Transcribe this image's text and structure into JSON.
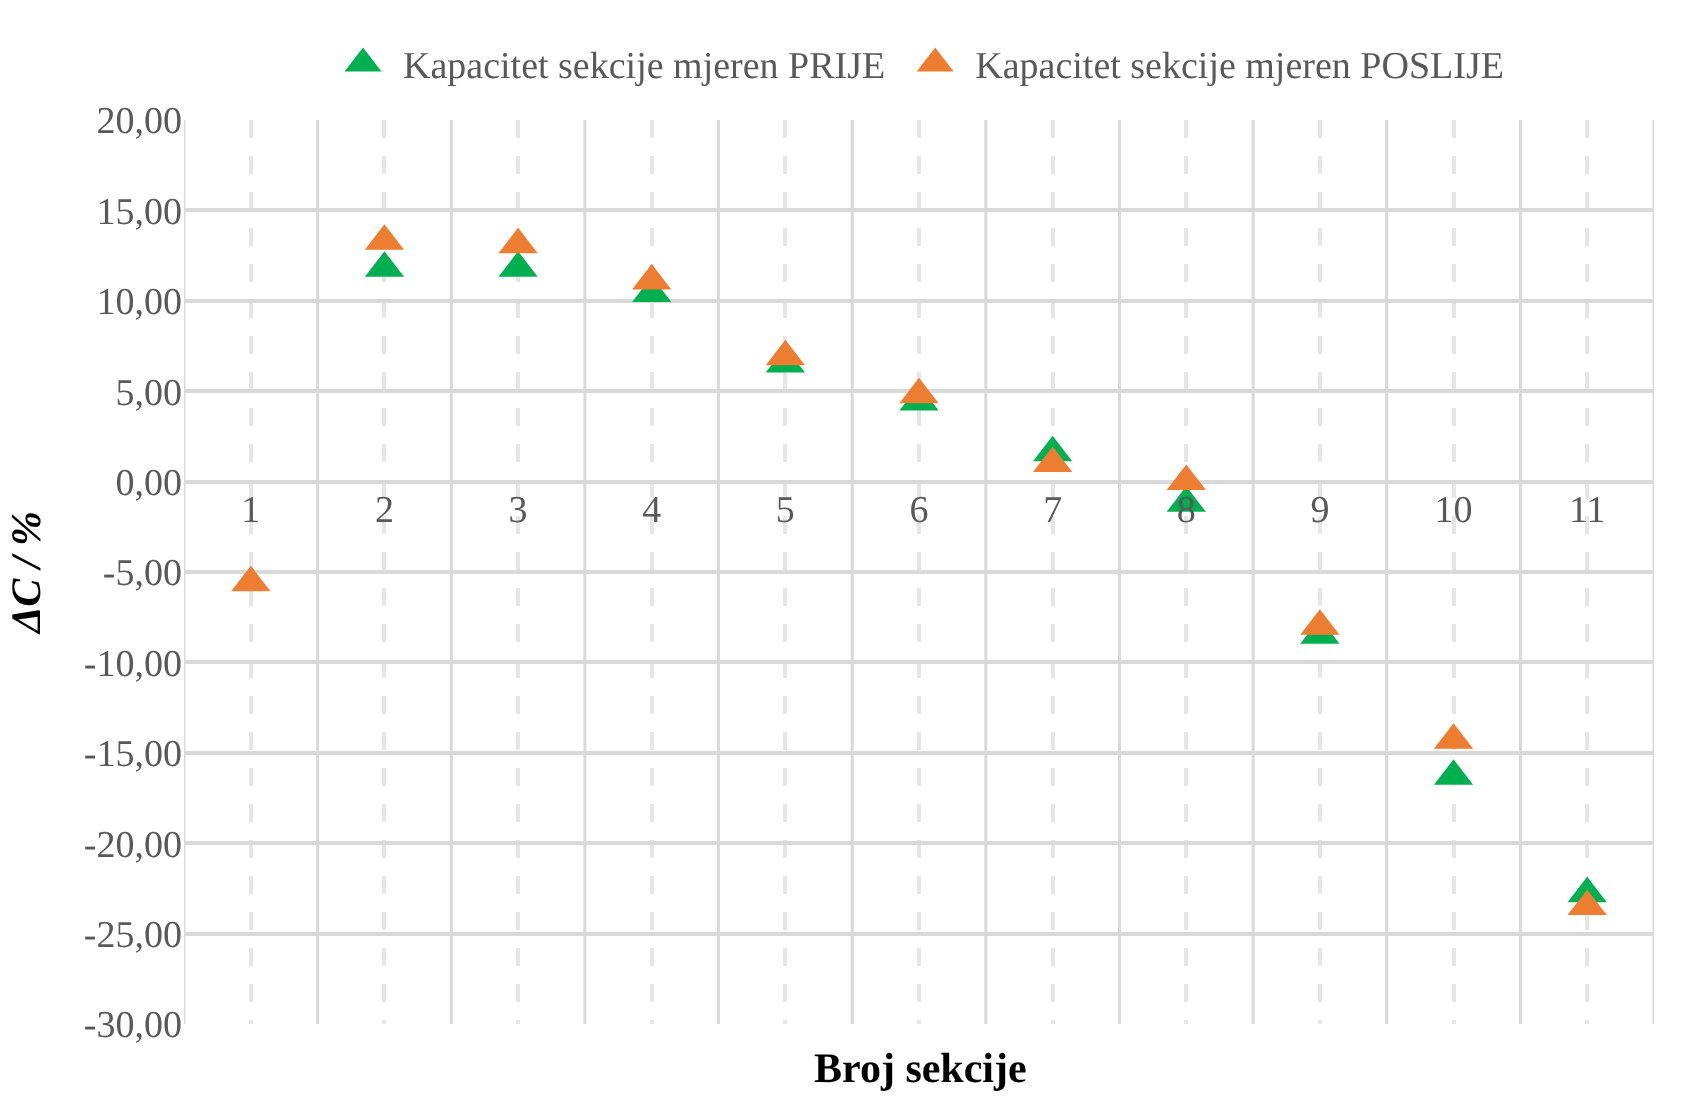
{
  "chart_data": {
    "type": "scatter",
    "xlabel": "Broj sekcije",
    "ylabel": "ΔC / %",
    "categories": [
      "1",
      "2",
      "3",
      "4",
      "5",
      "6",
      "7",
      "8",
      "9",
      "10",
      "11"
    ],
    "series": [
      {
        "name": "Kapacitet sekcije mjeren PRIJE",
        "color": "#00b050",
        "values": [
          null,
          11.8,
          11.8,
          10.4,
          6.5,
          4.4,
          1.6,
          -1.2,
          -8.5,
          -16.3,
          -22.8
        ]
      },
      {
        "name": "Kapacitet sekcije mjeren POSLIJE",
        "color": "#ed7d31",
        "values": [
          -5.6,
          13.3,
          13.1,
          11.1,
          6.9,
          4.8,
          1.0,
          0.0,
          -8.0,
          -14.3,
          -23.5
        ]
      }
    ],
    "ylim": [
      -30,
      20
    ],
    "yticks": [
      {
        "value": -30,
        "label": "-30,00"
      },
      {
        "value": -25,
        "label": "-25,00"
      },
      {
        "value": -20,
        "label": "-20,00"
      },
      {
        "value": -15,
        "label": "-15,00"
      },
      {
        "value": -10,
        "label": "-10,00"
      },
      {
        "value": -5,
        "label": "-5,00"
      },
      {
        "value": 0,
        "label": "0,00"
      },
      {
        "value": 5,
        "label": "5,00"
      },
      {
        "value": 10,
        "label": "10,00"
      },
      {
        "value": 15,
        "label": "15,00"
      },
      {
        "value": 20,
        "label": "20,00"
      }
    ],
    "grid": true,
    "marker": "triangle",
    "legend": "top"
  }
}
